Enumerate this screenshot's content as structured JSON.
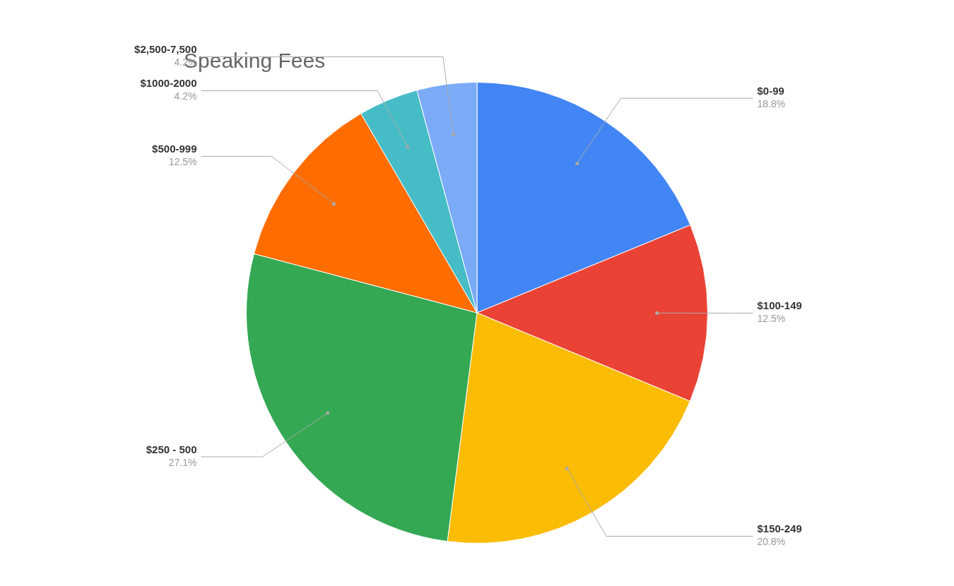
{
  "chart_data": {
    "type": "pie",
    "title": "Speaking Fees",
    "categories": [
      "$0-99",
      "$100-149",
      "$150-249",
      "$250 - 500",
      "$500-999",
      "$1000-2000",
      "$2,500-7,500"
    ],
    "values": [
      18.8,
      12.5,
      20.8,
      27.1,
      12.5,
      4.2,
      4.2
    ],
    "value_labels": [
      "18.8%",
      "12.5%",
      "20.8%",
      "27.1%",
      "12.5%",
      "4.2%",
      "4.2%"
    ],
    "colors": [
      "#4285F4",
      "#EA4335",
      "#FBBC04",
      "#34A853",
      "#FF6D00",
      "#46BDC6",
      "#7BAAF7"
    ],
    "data_labels": true
  }
}
